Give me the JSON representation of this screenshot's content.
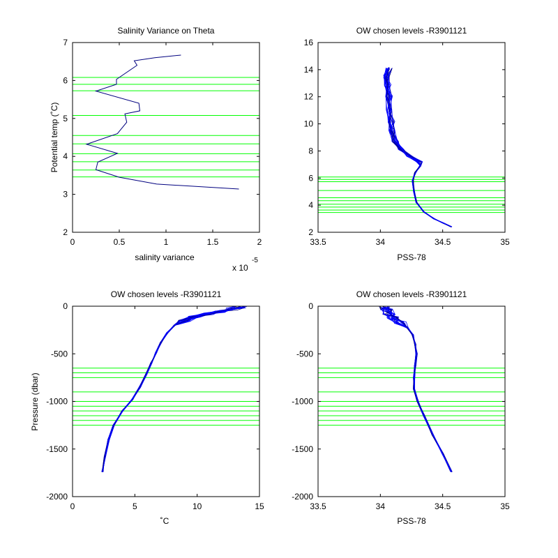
{
  "colors": {
    "background": "#ffffff",
    "axes": "#000000",
    "profile": "#0000ff",
    "profile_dark": "#00007f",
    "levels": "#00ff00"
  },
  "chart_data": [
    {
      "id": "p1",
      "type": "line",
      "title": "Salinity Variance on Theta",
      "xlabel": "salinity variance",
      "ylabel": "Potential temp (˚C)",
      "xlim": [
        0,
        2
      ],
      "ylim": [
        2,
        7
      ],
      "xticks": [
        "0",
        "0.5",
        "1",
        "1.5",
        "2"
      ],
      "xtick_values": [
        0,
        0.5,
        1,
        1.5,
        2
      ],
      "yticks": [
        "2",
        "3",
        "4",
        "5",
        "6",
        "7"
      ],
      "ytick_values": [
        2,
        3,
        4,
        5,
        6,
        7
      ],
      "x_exponent_label": "x 10",
      "x_exponent": "-5",
      "grid": false,
      "series": [
        {
          "role": "profile",
          "x": [
            1.16,
            0.88,
            0.66,
            0.69,
            0.47,
            0.47,
            0.25,
            0.71,
            0.72,
            0.56,
            0.58,
            0.48,
            0.15,
            0.48,
            0.27,
            0.25,
            0.5,
            0.9,
            1.78
          ],
          "y": [
            6.67,
            6.6,
            6.52,
            6.4,
            6.03,
            5.9,
            5.72,
            5.4,
            5.2,
            5.12,
            4.9,
            4.6,
            4.32,
            4.08,
            3.85,
            3.65,
            3.45,
            3.27,
            3.14
          ]
        }
      ],
      "hlines": [
        6.08,
        5.9,
        5.73,
        5.08,
        4.55,
        4.33,
        4.07,
        3.86,
        3.64,
        3.46
      ]
    },
    {
      "id": "p2",
      "type": "line",
      "title": "OW chosen levels -R3901121",
      "xlabel": "PSS-78",
      "ylabel": "",
      "xlim": [
        33.5,
        35
      ],
      "ylim": [
        2,
        16
      ],
      "xticks": [
        "33.5",
        "34",
        "34.5",
        "35"
      ],
      "xtick_values": [
        33.5,
        34,
        34.5,
        35
      ],
      "yticks": [
        "2",
        "4",
        "6",
        "8",
        "10",
        "12",
        "14",
        "16"
      ],
      "ytick_values": [
        2,
        4,
        6,
        8,
        10,
        12,
        14,
        16
      ],
      "grid": false,
      "series": [
        {
          "role": "profile",
          "x": [
            34.07,
            34.05,
            34.06,
            34.07,
            34.07,
            34.09,
            34.09,
            34.12,
            34.17,
            34.24,
            34.31,
            34.32,
            34.28,
            34.26,
            34.27,
            34.29,
            34.35,
            34.43,
            34.5,
            34.57
          ],
          "y": [
            14.1,
            13.5,
            12.9,
            12.0,
            11.0,
            10.1,
            9.5,
            8.7,
            8.1,
            7.6,
            7.2,
            6.9,
            6.4,
            5.8,
            5.0,
            4.2,
            3.5,
            3.0,
            2.7,
            2.4
          ]
        }
      ],
      "hlines": [
        6.08,
        5.9,
        5.73,
        5.08,
        4.55,
        4.33,
        4.07,
        3.86,
        3.64,
        3.46
      ]
    },
    {
      "id": "p3",
      "type": "line",
      "title": "OW chosen levels -R3901121",
      "xlabel": "˚C",
      "ylabel": "Pressure (dbar)",
      "xlim": [
        0,
        15
      ],
      "ylim": [
        -2000,
        0
      ],
      "xticks": [
        "0",
        "5",
        "10",
        "15"
      ],
      "xtick_values": [
        0,
        5,
        10,
        15
      ],
      "yticks": [
        "-2000",
        "-1500",
        "-1000",
        "-500",
        "0"
      ],
      "ytick_values": [
        -2000,
        -1500,
        -1000,
        -500,
        0
      ],
      "grid": false,
      "series": [
        {
          "role": "profile",
          "x": [
            13.5,
            12.8,
            11.8,
            10.8,
            9.8,
            9.0,
            8.2,
            7.6,
            7.1,
            6.7,
            6.3,
            5.9,
            5.4,
            4.8,
            4.0,
            3.3,
            2.9,
            2.6,
            2.4
          ],
          "y": [
            -10,
            -30,
            -55,
            -80,
            -110,
            -150,
            -200,
            -280,
            -380,
            -490,
            -600,
            -720,
            -850,
            -980,
            -1100,
            -1250,
            -1400,
            -1580,
            -1740
          ]
        }
      ],
      "hlines": [
        -650,
        -700,
        -750,
        -900,
        -1000,
        -1050,
        -1100,
        -1150,
        -1200,
        -1250
      ]
    },
    {
      "id": "p4",
      "type": "line",
      "title": "OW chosen levels -R3901121",
      "xlabel": "PSS-78",
      "ylabel": "",
      "xlim": [
        33.5,
        35
      ],
      "ylim": [
        -2000,
        0
      ],
      "xticks": [
        "33.5",
        "34",
        "34.5",
        "35"
      ],
      "xtick_values": [
        33.5,
        34,
        34.5,
        35
      ],
      "yticks": [
        "-2000",
        "-1500",
        "-1000",
        "-500",
        "0"
      ],
      "ytick_values": [
        -2000,
        -1500,
        -1000,
        -500,
        0
      ],
      "grid": false,
      "series": [
        {
          "role": "profile",
          "x": [
            34.04,
            34.05,
            34.07,
            34.1,
            34.16,
            34.22,
            34.26,
            34.28,
            34.29,
            34.28,
            34.27,
            34.27,
            34.3,
            34.35,
            34.42,
            34.5,
            34.57
          ],
          "y": [
            -5,
            -40,
            -80,
            -120,
            -170,
            -230,
            -300,
            -400,
            -500,
            -620,
            -750,
            -870,
            -1000,
            -1150,
            -1350,
            -1550,
            -1740
          ]
        }
      ],
      "hlines": [
        -650,
        -700,
        -750,
        -900,
        -1000,
        -1050,
        -1100,
        -1150,
        -1200,
        -1250
      ]
    }
  ]
}
